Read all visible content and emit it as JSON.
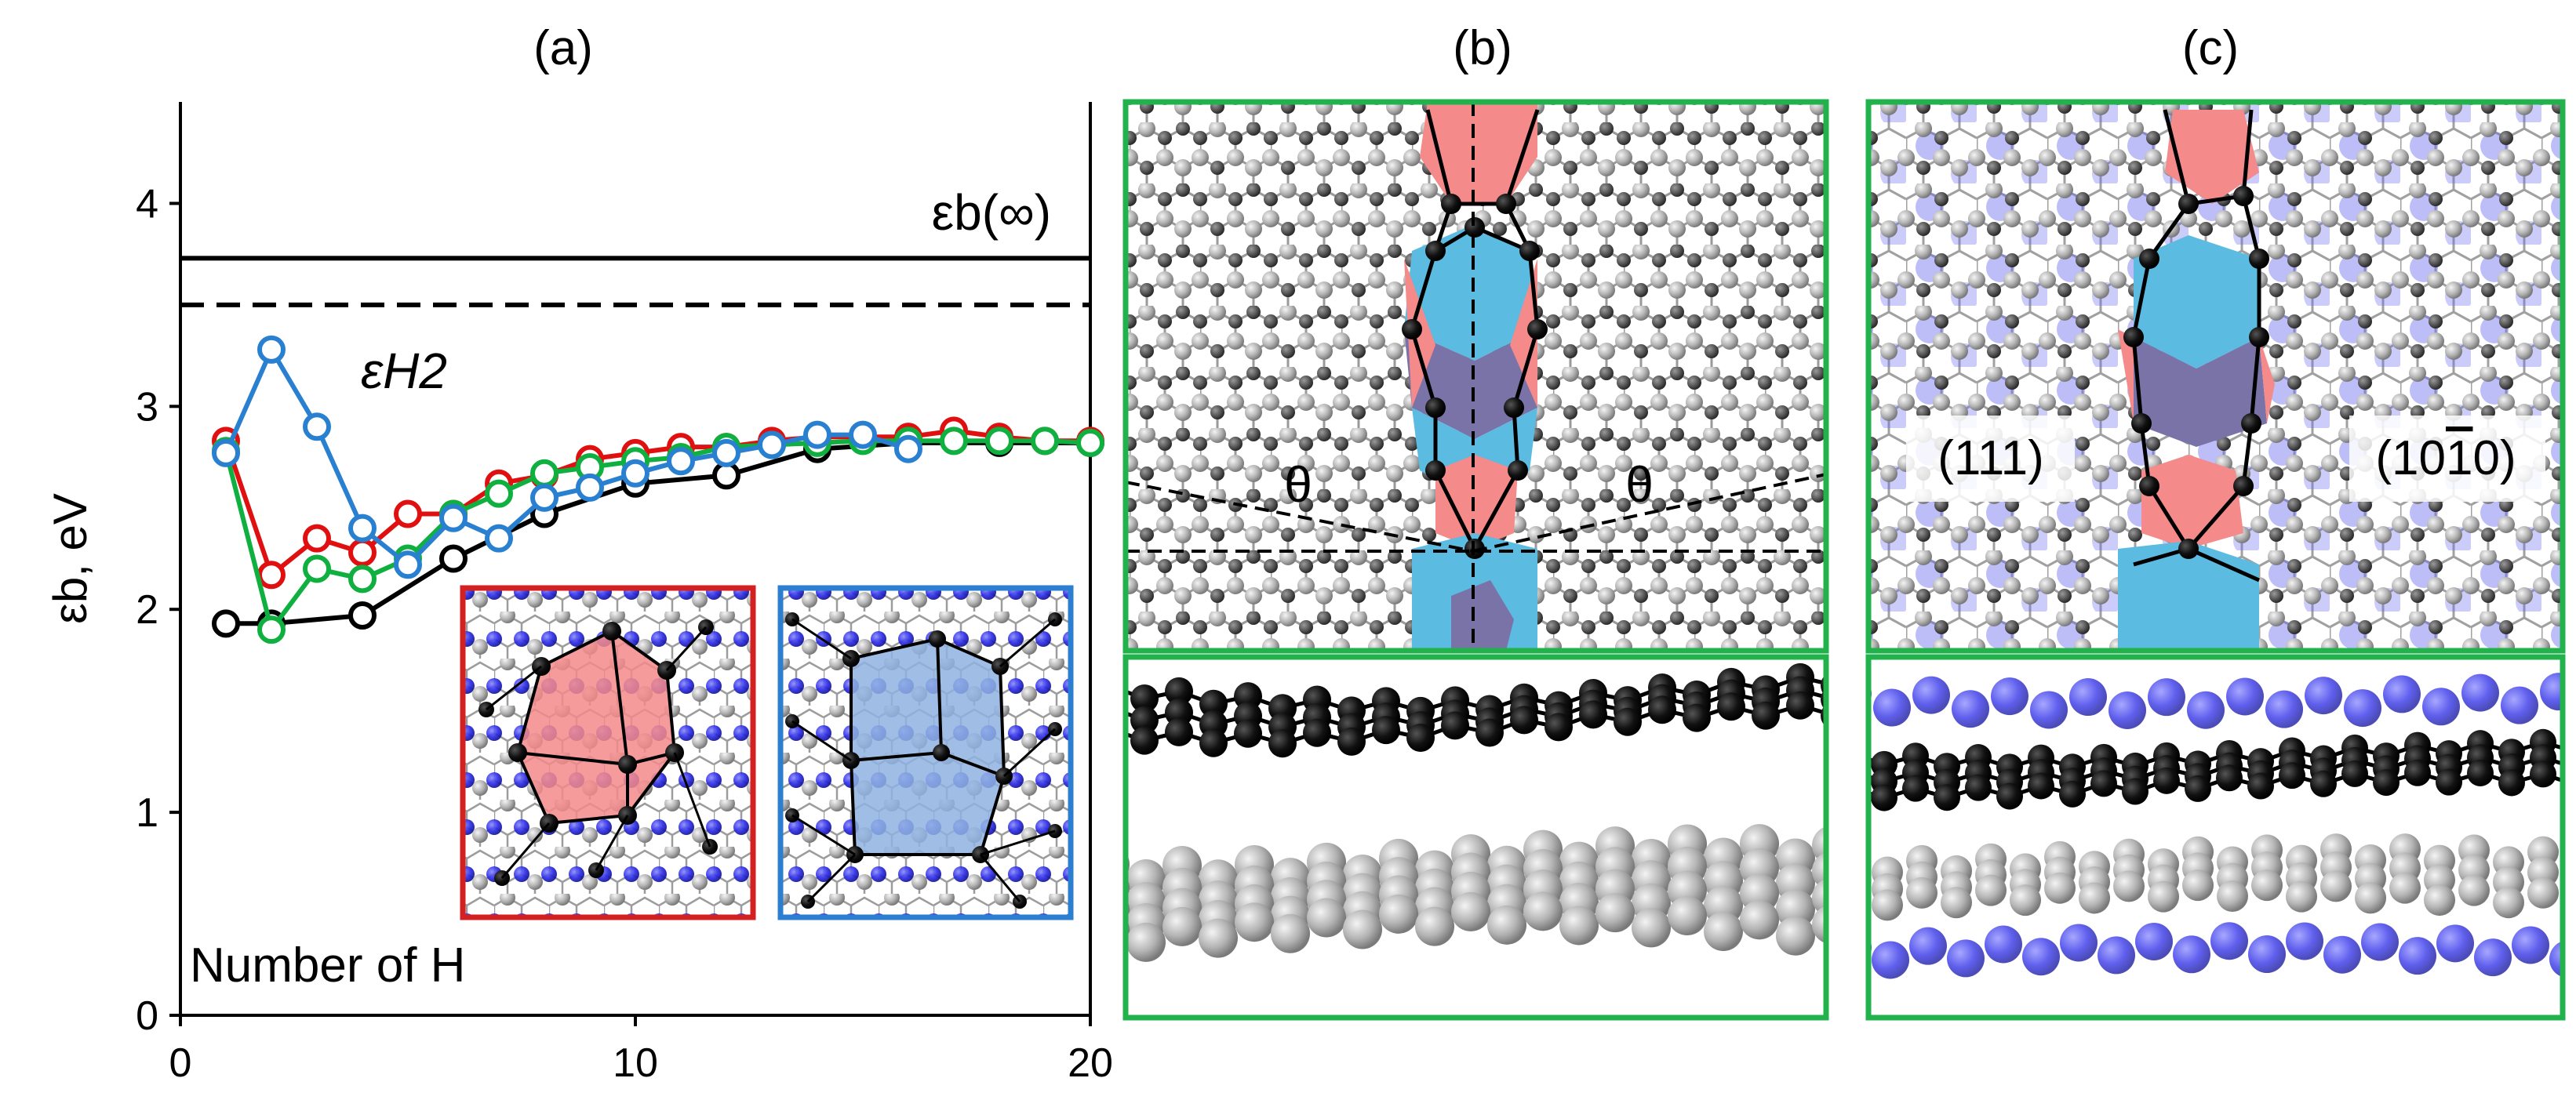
{
  "panels": {
    "a": {
      "label": "(a)"
    },
    "b": {
      "label": "(b)",
      "angle_symbol": "θ"
    },
    "c": {
      "label": "(c)",
      "left_face": "(111)",
      "right_face": "(10",
      "right_face_bar": "1",
      "right_face_end": "0)"
    }
  },
  "chart_data": {
    "type": "line",
    "title": "",
    "xlabel": "",
    "ylabel": "εb, eV",
    "xlim": [
      0,
      20
    ],
    "ylim": [
      0,
      4.5
    ],
    "xticks": [
      0,
      10,
      20
    ],
    "yticks": [
      0,
      1,
      2,
      3,
      4
    ],
    "grid": false,
    "annotations": {
      "number_of_h": "Number of H",
      "eps_inf": "εb(∞)",
      "eps_h2": "εH2"
    },
    "reference_lines": [
      {
        "label": "εb(∞)",
        "value": 3.73,
        "style": "solid",
        "color": "#000000"
      },
      {
        "label": "εH2",
        "value": 3.5,
        "style": "dashed",
        "color": "#000000"
      }
    ],
    "series": [
      {
        "color": "#000000",
        "x": [
          1,
          2,
          4,
          6,
          8,
          10,
          12,
          14,
          16,
          18,
          20
        ],
        "y": [
          1.93,
          1.93,
          1.97,
          2.25,
          2.47,
          2.62,
          2.66,
          2.79,
          2.82,
          2.82,
          2.82
        ]
      },
      {
        "color": "#e01010",
        "x": [
          1,
          2,
          3,
          4,
          5,
          6,
          7,
          8,
          9,
          10,
          11,
          12,
          13,
          14,
          15,
          16,
          17,
          18,
          19,
          20
        ],
        "y": [
          2.83,
          2.17,
          2.35,
          2.28,
          2.47,
          2.47,
          2.62,
          2.66,
          2.74,
          2.77,
          2.8,
          2.8,
          2.83,
          2.85,
          2.85,
          2.85,
          2.88,
          2.85,
          2.83,
          2.83
        ]
      },
      {
        "color": "#10b040",
        "x": [
          1,
          2,
          3,
          4,
          5,
          6,
          7,
          8,
          9,
          10,
          11,
          12,
          13,
          14,
          15,
          16,
          17,
          18,
          19,
          20
        ],
        "y": [
          2.78,
          1.9,
          2.2,
          2.15,
          2.25,
          2.47,
          2.57,
          2.67,
          2.7,
          2.73,
          2.75,
          2.8,
          2.81,
          2.82,
          2.83,
          2.83,
          2.83,
          2.83,
          2.83,
          2.82
        ]
      },
      {
        "color": "#2a80d0",
        "x": [
          1,
          2,
          3,
          4,
          5,
          6,
          7,
          8,
          9,
          10,
          11,
          12,
          13,
          14,
          15,
          16
        ],
        "y": [
          2.77,
          3.28,
          2.9,
          2.4,
          2.22,
          2.45,
          2.35,
          2.55,
          2.6,
          2.67,
          2.73,
          2.77,
          2.81,
          2.86,
          2.86,
          2.79
        ]
      }
    ]
  },
  "colors": {
    "frame_green": "#21b24b",
    "inset_red": "#d42020",
    "inset_blue": "#2c7fd0",
    "ring_red": "#f48a8a",
    "ring_blue": "#5bbbe0",
    "ring_purple": "#7a73a8",
    "carbon": "#000000",
    "substrate_gray": "#a8a8a8",
    "nitrogen_blue": "#2020e0"
  }
}
